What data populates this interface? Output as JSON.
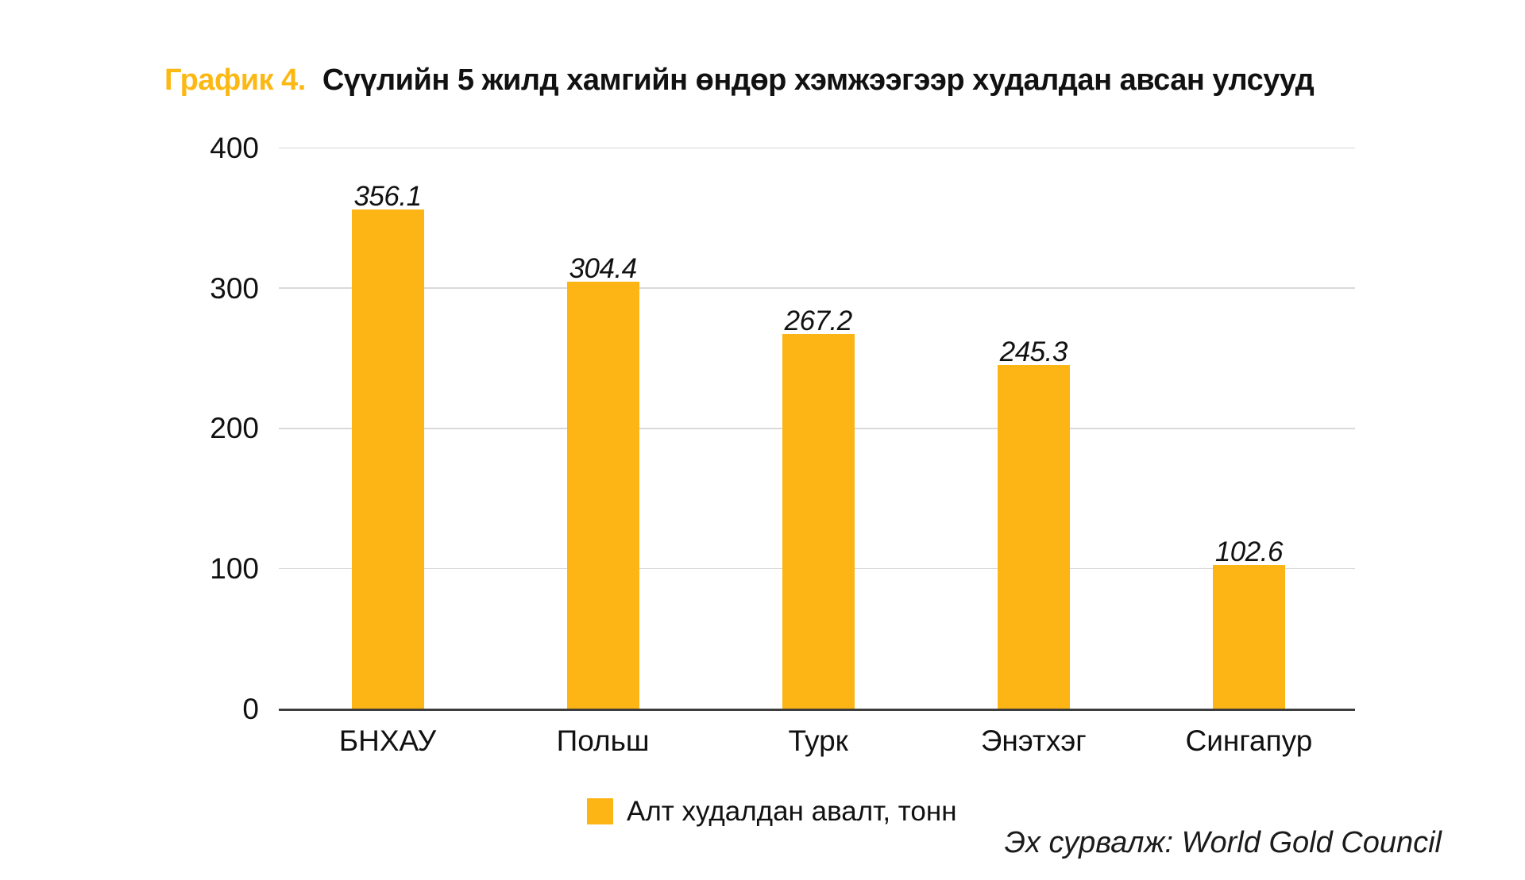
{
  "title": {
    "prefix": "График 4.",
    "text": "Сүүлийн 5 жилд хамгийн өндөр хэмжээгээр худалдан авсан улсууд"
  },
  "legend": {
    "label": "Алт худалдан авалт, тонн"
  },
  "source": "Эх сурвалж: World Gold Council",
  "colors": {
    "bar": "#fcb514",
    "title_accent": "#fcb813",
    "gridline": "#d9d9d9",
    "axis": "#3d3d3d",
    "text": "#111111"
  },
  "chart_data": {
    "type": "bar",
    "title": "График 4. Сүүлийн 5 жилд хамгийн өндөр хэмжээгээр худалдан авсан улсууд",
    "categories": [
      "БНХАУ",
      "Польш",
      "Турк",
      "Энэтхэг",
      "Сингапур"
    ],
    "values": [
      356.1,
      304.4,
      267.2,
      245.3,
      102.6
    ],
    "series_name": "Алт худалдан авалт, тонн",
    "xlabel": "",
    "ylabel": "",
    "ylim": [
      0,
      400
    ],
    "yticks": [
      0,
      100,
      200,
      300,
      400
    ],
    "grid": "horizontal",
    "legend_position": "bottom",
    "bar_color": "#fcb514",
    "value_labels": [
      "356.1",
      "304.4",
      "267.2",
      "245.3",
      "102.6"
    ]
  }
}
